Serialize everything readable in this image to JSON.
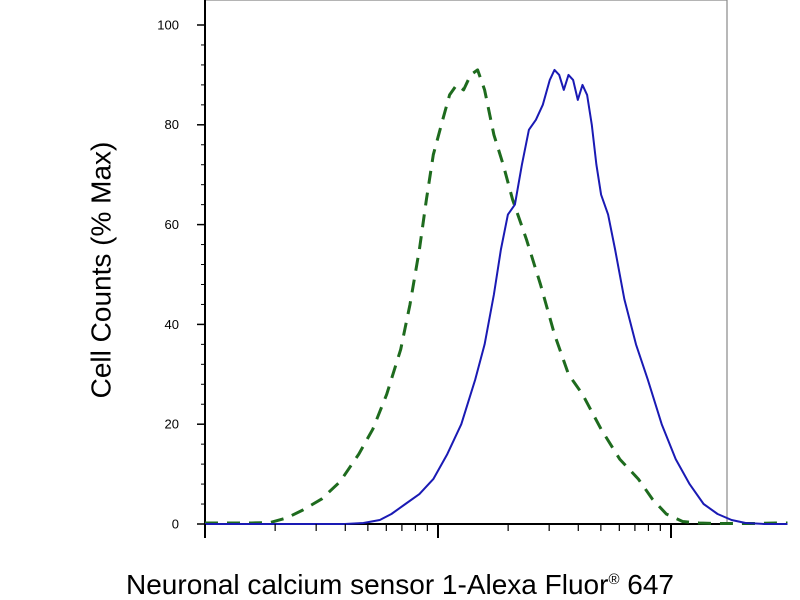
{
  "chart_data": {
    "type": "line",
    "ylabel": "Cell Counts (% Max)",
    "xlabel_text": "Neuronal calcium sensor 1-Alexa Fluor",
    "xlabel_superscript": "®",
    "xlabel_suffix": " 647",
    "x_scale": "log",
    "x_decades": 3,
    "ylim": [
      0,
      105
    ],
    "yticks": [
      0,
      20,
      40,
      60,
      80,
      100
    ],
    "ytick_labels": [
      "0",
      "20",
      "40",
      "60",
      "80",
      "100"
    ],
    "grid": false,
    "series": [
      {
        "style": "dashed",
        "color": "#1e6b1e",
        "points": [
          [
            0.0,
            0.2
          ],
          [
            0.1,
            0.2
          ],
          [
            0.2,
            0.2
          ],
          [
            0.28,
            0.3
          ],
          [
            0.35,
            1.2
          ],
          [
            0.42,
            2.8
          ],
          [
            0.5,
            5.0
          ],
          [
            0.58,
            8.5
          ],
          [
            0.66,
            14.0
          ],
          [
            0.72,
            19.0
          ],
          [
            0.78,
            26.0
          ],
          [
            0.84,
            35.0
          ],
          [
            0.88,
            44.0
          ],
          [
            0.92,
            55.0
          ],
          [
            0.95,
            65.0
          ],
          [
            0.98,
            74.0
          ],
          [
            1.02,
            81.0
          ],
          [
            1.05,
            86.0
          ],
          [
            1.08,
            88.0
          ],
          [
            1.11,
            87.0
          ],
          [
            1.14,
            90.0
          ],
          [
            1.17,
            91.0
          ],
          [
            1.2,
            87.0
          ],
          [
            1.24,
            78.0
          ],
          [
            1.28,
            72.0
          ],
          [
            1.32,
            65.0
          ],
          [
            1.38,
            57.0
          ],
          [
            1.44,
            48.0
          ],
          [
            1.5,
            38.0
          ],
          [
            1.56,
            30.0
          ],
          [
            1.62,
            26.0
          ],
          [
            1.7,
            19.0
          ],
          [
            1.78,
            13.0
          ],
          [
            1.86,
            9.0
          ],
          [
            1.92,
            5.0
          ],
          [
            1.98,
            2.0
          ],
          [
            2.05,
            0.5
          ],
          [
            2.12,
            0.2
          ],
          [
            2.2,
            0.1
          ],
          [
            2.35,
            0.1
          ],
          [
            2.45,
            0.2
          ],
          [
            2.5,
            0.2
          ]
        ]
      },
      {
        "style": "solid",
        "color": "#1a1ab4",
        "points": [
          [
            0.0,
            0.0
          ],
          [
            0.3,
            0.0
          ],
          [
            0.6,
            0.0
          ],
          [
            0.68,
            0.2
          ],
          [
            0.75,
            0.8
          ],
          [
            0.8,
            2.0
          ],
          [
            0.86,
            4.0
          ],
          [
            0.92,
            6.0
          ],
          [
            0.98,
            9.0
          ],
          [
            1.04,
            14.0
          ],
          [
            1.1,
            20.0
          ],
          [
            1.16,
            29.0
          ],
          [
            1.2,
            36.0
          ],
          [
            1.24,
            46.0
          ],
          [
            1.27,
            55.0
          ],
          [
            1.3,
            62.0
          ],
          [
            1.33,
            64.0
          ],
          [
            1.36,
            72.0
          ],
          [
            1.39,
            79.0
          ],
          [
            1.42,
            81.0
          ],
          [
            1.45,
            84.0
          ],
          [
            1.48,
            89.0
          ],
          [
            1.5,
            91.0
          ],
          [
            1.52,
            90.0
          ],
          [
            1.54,
            87.0
          ],
          [
            1.56,
            90.0
          ],
          [
            1.58,
            89.0
          ],
          [
            1.6,
            85.0
          ],
          [
            1.62,
            88.0
          ],
          [
            1.64,
            86.0
          ],
          [
            1.66,
            80.0
          ],
          [
            1.68,
            72.0
          ],
          [
            1.7,
            66.0
          ],
          [
            1.73,
            62.0
          ],
          [
            1.76,
            55.0
          ],
          [
            1.8,
            45.0
          ],
          [
            1.85,
            36.0
          ],
          [
            1.9,
            29.0
          ],
          [
            1.96,
            20.0
          ],
          [
            2.02,
            13.0
          ],
          [
            2.08,
            8.0
          ],
          [
            2.14,
            4.0
          ],
          [
            2.2,
            2.0
          ],
          [
            2.26,
            0.8
          ],
          [
            2.32,
            0.2
          ],
          [
            2.4,
            0.0
          ],
          [
            2.5,
            0.0
          ]
        ]
      }
    ]
  }
}
